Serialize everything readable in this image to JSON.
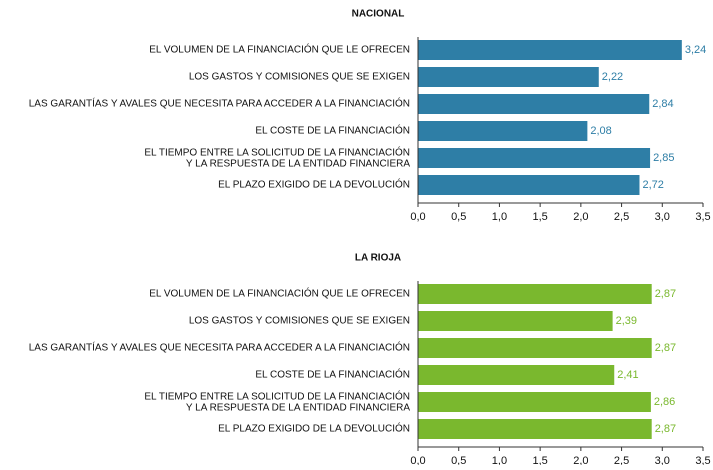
{
  "chart_data": [
    {
      "type": "hbar",
      "title": "NACIONAL",
      "categories": [
        "EL VOLUMEN DE LA FINANCIACIÓN QUE LE OFRECEN",
        "LOS GASTOS Y COMISIONES QUE SE EXIGEN",
        "LAS GARANTÍAS Y AVALES QUE NECESITA PARA ACCEDER A LA FINANCIACIÓN",
        "EL COSTE DE LA FINANCIACIÓN",
        "EL TIEMPO ENTRE LA SOLICITUD DE LA FINANCIACIÓN\nY LA RESPUESTA DE LA ENTIDAD FINANCIERA",
        "EL PLAZO EXIGIDO DE LA DEVOLUCIÓN"
      ],
      "values": [
        3.24,
        2.22,
        2.84,
        2.08,
        2.85,
        2.72
      ],
      "value_labels": [
        "3,24",
        "2,22",
        "2,84",
        "2,08",
        "2,85",
        "2,72"
      ],
      "color": "#2e7ea6",
      "xlim": [
        0,
        3.5
      ],
      "xticks": [
        {
          "value": 0,
          "label": "0,0"
        },
        {
          "value": 0.5,
          "label": "0,5"
        },
        {
          "value": 1,
          "label": "1,0"
        },
        {
          "value": 1.5,
          "label": "1,5"
        },
        {
          "value": 2,
          "label": "2,0"
        },
        {
          "value": 2.5,
          "label": "2,5"
        },
        {
          "value": 3,
          "label": "3,0"
        },
        {
          "value": 3.5,
          "label": "3,5"
        }
      ]
    },
    {
      "type": "hbar",
      "title": "LA RIOJA",
      "categories": [
        "EL VOLUMEN DE LA FINANCIACIÓN QUE LE OFRECEN",
        "LOS GASTOS Y COMISIONES QUE SE EXIGEN",
        "LAS GARANTÍAS Y AVALES QUE NECESITA PARA ACCEDER A LA FINANCIACIÓN",
        "EL COSTE DE LA FINANCIACIÓN",
        "EL TIEMPO ENTRE LA SOLICITUD DE LA FINANCIACIÓN\nY LA RESPUESTA DE LA ENTIDAD FINANCIERA",
        "EL PLAZO EXIGIDO DE LA DEVOLUCIÓN"
      ],
      "values": [
        2.87,
        2.39,
        2.87,
        2.41,
        2.86,
        2.87
      ],
      "value_labels": [
        "2,87",
        "2,39",
        "2,87",
        "2,41",
        "2,86",
        "2,87"
      ],
      "color": "#7ab82e",
      "xlim": [
        0,
        3.5
      ],
      "xticks": [
        {
          "value": 0,
          "label": "0,0"
        },
        {
          "value": 0.5,
          "label": "0,5"
        },
        {
          "value": 1,
          "label": "1,0"
        },
        {
          "value": 1.5,
          "label": "1,5"
        },
        {
          "value": 2,
          "label": "2,0"
        },
        {
          "value": 2.5,
          "label": "2,5"
        },
        {
          "value": 3,
          "label": "3,0"
        },
        {
          "value": 3.5,
          "label": "3,5"
        }
      ]
    }
  ]
}
